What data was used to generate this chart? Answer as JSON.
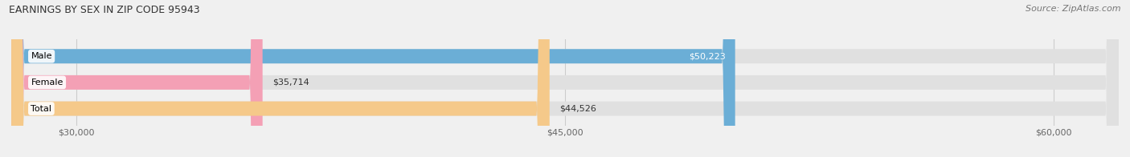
{
  "title": "EARNINGS BY SEX IN ZIP CODE 95943",
  "source": "Source: ZipAtlas.com",
  "categories": [
    "Male",
    "Female",
    "Total"
  ],
  "values": [
    50223,
    35714,
    44526
  ],
  "bar_colors": [
    "#6baed6",
    "#f4a0b5",
    "#f5c98a"
  ],
  "label_inside": [
    true,
    false,
    false
  ],
  "xlim": [
    28000,
    62000
  ],
  "xticks": [
    30000,
    45000,
    60000
  ],
  "xtick_labels": [
    "$30,000",
    "$45,000",
    "$60,000"
  ],
  "bar_height": 0.55,
  "background_color": "#f0f0f0",
  "bar_background_color": "#e0e0e0",
  "title_fontsize": 9,
  "source_fontsize": 8,
  "label_fontsize": 8,
  "category_fontsize": 8,
  "tick_fontsize": 8
}
